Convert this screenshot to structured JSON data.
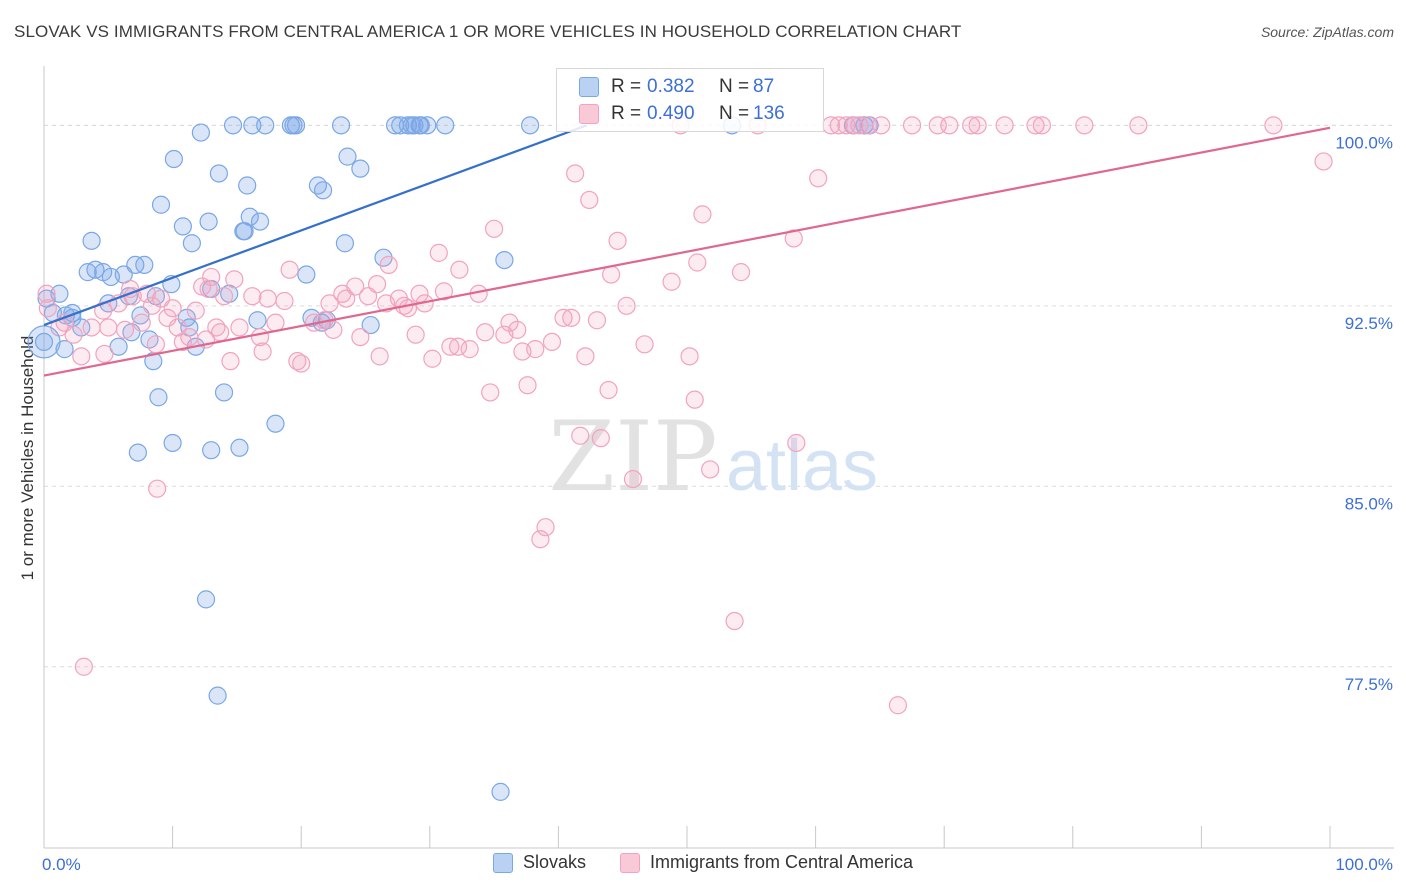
{
  "title": "SLOVAK VS IMMIGRANTS FROM CENTRAL AMERICA 1 OR MORE VEHICLES IN HOUSEHOLD CORRELATION CHART",
  "source": "Source: ZipAtlas.com",
  "watermark": {
    "zip": "ZIP",
    "atlas": "atlas"
  },
  "stats": {
    "r_label": "R =",
    "n_label": "N =",
    "rows": [
      {
        "series": "Slovaks",
        "r": "0.382",
        "n": "87"
      },
      {
        "series": "Immigrants from Central America",
        "r": "0.490",
        "n": "136"
      }
    ]
  },
  "chart_data": {
    "type": "scatter",
    "title": "SLOVAK VS IMMIGRANTS FROM CENTRAL AMERICA 1 OR MORE VEHICLES IN HOUSEHOLD CORRELATION CHART",
    "xlabel": "",
    "ylabel": "1 or more Vehicles in Household",
    "xlim": [
      0,
      100
    ],
    "ylim": [
      70.3,
      102.3
    ],
    "x_tick_labels": [
      "0.0%",
      "100.0%"
    ],
    "y_ticks": [
      77.5,
      85.0,
      92.5,
      100.0
    ],
    "y_tick_labels": [
      "77.5%",
      "85.0%",
      "92.5%",
      "100.0%"
    ],
    "grid": true,
    "legend_position": "bottom",
    "series": [
      {
        "name": "Slovaks",
        "color": "#7aa7e6",
        "line_color": "#3470cc",
        "trend": {
          "x": [
            0,
            42.2
          ],
          "y": [
            91.7,
            100.0
          ]
        },
        "points": [
          [
            0,
            91
          ],
          [
            0.2,
            92.8
          ],
          [
            0.7,
            92.2
          ],
          [
            1.2,
            93
          ],
          [
            1.6,
            90.7
          ],
          [
            1.7,
            92.1
          ],
          [
            2.2,
            92.2
          ],
          [
            2.2,
            92
          ],
          [
            2.9,
            91.6
          ],
          [
            3.4,
            93.9
          ],
          [
            3.7,
            95.2
          ],
          [
            4,
            94
          ],
          [
            4.6,
            93.9
          ],
          [
            5,
            92.6
          ],
          [
            5.2,
            93.7
          ],
          [
            5.8,
            90.8
          ],
          [
            6.2,
            93.8
          ],
          [
            6.6,
            92.9
          ],
          [
            6.8,
            91.4
          ],
          [
            7.1,
            94.2
          ],
          [
            7.3,
            86.4
          ],
          [
            7.5,
            92.1
          ],
          [
            7.8,
            94.2
          ],
          [
            8.2,
            91.1
          ],
          [
            8.5,
            90.2
          ],
          [
            8.7,
            92.9
          ],
          [
            8.9,
            88.7
          ],
          [
            9.1,
            96.7
          ],
          [
            9.9,
            93.4
          ],
          [
            10,
            86.8
          ],
          [
            10.1,
            98.6
          ],
          [
            10.8,
            95.8
          ],
          [
            11.1,
            92
          ],
          [
            11.3,
            91.6
          ],
          [
            11.5,
            95.1
          ],
          [
            11.8,
            90.8
          ],
          [
            12.2,
            99.7
          ],
          [
            12.6,
            80.3
          ],
          [
            12.8,
            96
          ],
          [
            13,
            86.5
          ],
          [
            13,
            93.2
          ],
          [
            13.5,
            76.3
          ],
          [
            13.6,
            98
          ],
          [
            14,
            88.9
          ],
          [
            14.4,
            93
          ],
          [
            14.7,
            100
          ],
          [
            15.2,
            86.6
          ],
          [
            15.5,
            95.6
          ],
          [
            15.6,
            95.6
          ],
          [
            15.8,
            97.5
          ],
          [
            16,
            96.2
          ],
          [
            16.2,
            100
          ],
          [
            16.6,
            91.9
          ],
          [
            16.8,
            96
          ],
          [
            17.2,
            100
          ],
          [
            18,
            87.6
          ],
          [
            19.2,
            100
          ],
          [
            19.4,
            100
          ],
          [
            19.6,
            100
          ],
          [
            20.4,
            93.8
          ],
          [
            20.8,
            92
          ],
          [
            21.3,
            97.5
          ],
          [
            21.6,
            91.8
          ],
          [
            21.7,
            97.3
          ],
          [
            22,
            91.9
          ],
          [
            23.1,
            100
          ],
          [
            23.4,
            95.1
          ],
          [
            23.6,
            98.7
          ],
          [
            24.6,
            98.2
          ],
          [
            25.4,
            91.7
          ],
          [
            26.4,
            94.5
          ],
          [
            27.3,
            100
          ],
          [
            27.7,
            100
          ],
          [
            28.3,
            100
          ],
          [
            28.6,
            100
          ],
          [
            28.8,
            100
          ],
          [
            29.2,
            100
          ],
          [
            29.3,
            100
          ],
          [
            29.8,
            100
          ],
          [
            31.2,
            100
          ],
          [
            35.5,
            72.3
          ],
          [
            35.8,
            94.4
          ],
          [
            37.8,
            100
          ],
          [
            53.5,
            100
          ],
          [
            62.9,
            100
          ],
          [
            63.8,
            100
          ],
          [
            64.2,
            100
          ]
        ]
      },
      {
        "name": "Immigrants from Central America",
        "color": "#f2a3bd",
        "line_color": "#e0678f",
        "trend": {
          "x": [
            0,
            100
          ],
          "y": [
            89.6,
            99.9
          ]
        },
        "points": [
          [
            0.2,
            93
          ],
          [
            0.3,
            92.4
          ],
          [
            1.2,
            91.6
          ],
          [
            1.6,
            91.8
          ],
          [
            2.3,
            91.3
          ],
          [
            2.9,
            90.4
          ],
          [
            3.1,
            77.5
          ],
          [
            3.7,
            91.6
          ],
          [
            4.6,
            92.3
          ],
          [
            4.7,
            90.5
          ],
          [
            5,
            91.6
          ],
          [
            5.8,
            92.6
          ],
          [
            6.3,
            91.5
          ],
          [
            6.7,
            93.2
          ],
          [
            6.9,
            92.9
          ],
          [
            7.6,
            91.8
          ],
          [
            8,
            93
          ],
          [
            8.4,
            92.5
          ],
          [
            8.7,
            90.9
          ],
          [
            8.8,
            84.9
          ],
          [
            9.1,
            92.8
          ],
          [
            9.6,
            92
          ],
          [
            10,
            92.4
          ],
          [
            10.4,
            91.6
          ],
          [
            10.8,
            91
          ],
          [
            11.3,
            91.2
          ],
          [
            11.8,
            92.3
          ],
          [
            12.3,
            93.3
          ],
          [
            12.6,
            91.1
          ],
          [
            12.8,
            93.2
          ],
          [
            13,
            93.7
          ],
          [
            13.4,
            91.6
          ],
          [
            13.7,
            91.4
          ],
          [
            14,
            92.9
          ],
          [
            14.5,
            90.2
          ],
          [
            14.8,
            93.6
          ],
          [
            15.2,
            91.6
          ],
          [
            16.2,
            92.9
          ],
          [
            16.8,
            91.2
          ],
          [
            17,
            90.6
          ],
          [
            17.4,
            92.8
          ],
          [
            18,
            91.8
          ],
          [
            18.7,
            92.7
          ],
          [
            19.1,
            94
          ],
          [
            19.7,
            90.2
          ],
          [
            20,
            90.1
          ],
          [
            21,
            91.8
          ],
          [
            21.8,
            91.9
          ],
          [
            22.2,
            92.6
          ],
          [
            22.5,
            91.5
          ],
          [
            23.2,
            93
          ],
          [
            23.5,
            92.8
          ],
          [
            24.2,
            93.3
          ],
          [
            24.6,
            91.2
          ],
          [
            25.2,
            92.9
          ],
          [
            25.9,
            93.4
          ],
          [
            26.1,
            90.4
          ],
          [
            26.6,
            92.6
          ],
          [
            26.8,
            94.2
          ],
          [
            27.6,
            92.8
          ],
          [
            28,
            92.5
          ],
          [
            28.3,
            92.4
          ],
          [
            28.9,
            91.3
          ],
          [
            29.2,
            93
          ],
          [
            29.6,
            92.6
          ],
          [
            30.2,
            90.3
          ],
          [
            30.7,
            94.7
          ],
          [
            31.1,
            93.1
          ],
          [
            31.6,
            90.8
          ],
          [
            32.2,
            90.8
          ],
          [
            32.3,
            94
          ],
          [
            33.1,
            90.7
          ],
          [
            33.8,
            93
          ],
          [
            34.3,
            91.4
          ],
          [
            34.7,
            88.9
          ],
          [
            35,
            95.7
          ],
          [
            35.8,
            91.3
          ],
          [
            36.2,
            91.8
          ],
          [
            36.8,
            91.5
          ],
          [
            37.2,
            90.6
          ],
          [
            37.6,
            89.2
          ],
          [
            38.2,
            90.7
          ],
          [
            38.6,
            82.8
          ],
          [
            39,
            83.3
          ],
          [
            39.5,
            91
          ],
          [
            40.4,
            92
          ],
          [
            41,
            92
          ],
          [
            41.3,
            98
          ],
          [
            41.7,
            87.1
          ],
          [
            42.1,
            90.4
          ],
          [
            42.4,
            96.9
          ],
          [
            43,
            91.9
          ],
          [
            43.3,
            87
          ],
          [
            43.9,
            89
          ],
          [
            44.1,
            93.8
          ],
          [
            44.6,
            95.2
          ],
          [
            45.3,
            92.5
          ],
          [
            45.8,
            85.3
          ],
          [
            46.7,
            90.9
          ],
          [
            48.8,
            93.5
          ],
          [
            49.5,
            100
          ],
          [
            50.2,
            90.4
          ],
          [
            50.6,
            88.6
          ],
          [
            50.8,
            94.3
          ],
          [
            51.2,
            96.3
          ],
          [
            51.8,
            85.7
          ],
          [
            53.7,
            79.4
          ],
          [
            54.2,
            93.9
          ],
          [
            55.5,
            100
          ],
          [
            58.3,
            95.3
          ],
          [
            58.5,
            86.8
          ],
          [
            60.2,
            97.8
          ],
          [
            61.2,
            100
          ],
          [
            61.8,
            100
          ],
          [
            62.4,
            100
          ],
          [
            63,
            100
          ],
          [
            63.4,
            100
          ],
          [
            64.1,
            100
          ],
          [
            65.1,
            100
          ],
          [
            66.4,
            75.9
          ],
          [
            67.5,
            100
          ],
          [
            69.5,
            100
          ],
          [
            70.4,
            100
          ],
          [
            72.1,
            100
          ],
          [
            72.6,
            100
          ],
          [
            74.7,
            100
          ],
          [
            77.1,
            100
          ],
          [
            77.6,
            100
          ],
          [
            80.9,
            100
          ],
          [
            85.1,
            100
          ],
          [
            95.6,
            100
          ],
          [
            99.5,
            98.5
          ]
        ]
      }
    ]
  }
}
